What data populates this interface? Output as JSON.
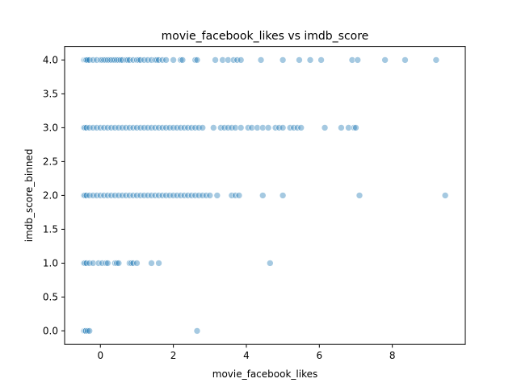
{
  "chart_data": {
    "type": "scatter",
    "title": "movie_facebook_likes vs imdb_score",
    "xlabel": "movie_facebook_likes",
    "ylabel": "imdb_score_binned",
    "xlim": [
      -0.98,
      10.0
    ],
    "ylim": [
      -0.2,
      4.2
    ],
    "xticks": [
      0,
      2,
      4,
      6,
      8
    ],
    "yticks": [
      0.0,
      0.5,
      1.0,
      1.5,
      2.0,
      2.5,
      3.0,
      3.5,
      4.0
    ],
    "ytick_labels": [
      "0.0",
      "0.5",
      "1.0",
      "1.5",
      "2.0",
      "2.5",
      "3.0",
      "3.5",
      "4.0"
    ],
    "grid": false,
    "marker_color": "#1f77b4",
    "marker_alpha": 0.4,
    "series": [
      {
        "x": [
          -0.45,
          -0.42,
          -0.4,
          -0.38,
          -0.35,
          -0.3,
          -0.2,
          -0.1,
          0.0,
          0.05,
          0.1,
          0.15,
          0.2,
          0.25,
          0.3,
          0.35,
          0.4,
          0.45,
          0.5,
          0.55,
          0.6,
          0.7,
          0.75,
          0.8,
          0.9,
          1.0,
          1.05,
          1.1,
          1.2,
          1.3,
          1.4,
          1.5,
          1.55,
          1.6,
          1.7,
          1.8,
          2.0,
          2.2,
          2.25,
          2.6,
          2.65,
          3.15,
          3.35,
          3.5,
          3.65,
          3.75,
          3.85,
          4.4,
          5.0,
          5.45,
          5.75,
          6.05,
          6.9,
          7.05,
          7.8,
          8.35,
          9.2
        ],
        "y": [
          4,
          4,
          4,
          4,
          4,
          4,
          4,
          4,
          4,
          4,
          4,
          4,
          4,
          4,
          4,
          4,
          4,
          4,
          4,
          4,
          4,
          4,
          4,
          4,
          4,
          4,
          4,
          4,
          4,
          4,
          4,
          4,
          4,
          4,
          4,
          4,
          4,
          4,
          4,
          4,
          4,
          4,
          4,
          4,
          4,
          4,
          4,
          4,
          4,
          4,
          4,
          4,
          4,
          4,
          4,
          4,
          4
        ]
      },
      {
        "x": [
          -0.45,
          -0.42,
          -0.38,
          -0.3,
          -0.2,
          -0.1,
          0.0,
          0.1,
          0.2,
          0.3,
          0.4,
          0.5,
          0.6,
          0.7,
          0.8,
          0.9,
          1.0,
          1.1,
          1.2,
          1.3,
          1.4,
          1.5,
          1.6,
          1.7,
          1.8,
          1.9,
          2.0,
          2.1,
          2.2,
          2.3,
          2.4,
          2.5,
          2.6,
          2.7,
          2.8,
          3.1,
          3.3,
          3.4,
          3.5,
          3.6,
          3.7,
          3.85,
          4.05,
          4.15,
          4.3,
          4.45,
          4.6,
          4.8,
          4.9,
          5.0,
          5.2,
          5.3,
          5.4,
          5.5,
          6.15,
          6.6,
          6.8,
          6.95,
          7.0
        ],
        "y": [
          3,
          3,
          3,
          3,
          3,
          3,
          3,
          3,
          3,
          3,
          3,
          3,
          3,
          3,
          3,
          3,
          3,
          3,
          3,
          3,
          3,
          3,
          3,
          3,
          3,
          3,
          3,
          3,
          3,
          3,
          3,
          3,
          3,
          3,
          3,
          3,
          3,
          3,
          3,
          3,
          3,
          3,
          3,
          3,
          3,
          3,
          3,
          3,
          3,
          3,
          3,
          3,
          3,
          3,
          3,
          3,
          3,
          3,
          3
        ]
      },
      {
        "x": [
          -0.45,
          -0.42,
          -0.38,
          -0.3,
          -0.2,
          -0.1,
          0.0,
          0.1,
          0.2,
          0.3,
          0.4,
          0.5,
          0.6,
          0.7,
          0.8,
          0.9,
          1.0,
          1.1,
          1.2,
          1.3,
          1.4,
          1.5,
          1.6,
          1.7,
          1.8,
          1.9,
          2.0,
          2.1,
          2.2,
          2.3,
          2.4,
          2.5,
          2.6,
          2.7,
          2.8,
          2.9,
          3.0,
          3.2,
          3.6,
          3.7,
          3.8,
          4.45,
          5.0,
          7.1,
          9.45
        ],
        "y": [
          2,
          2,
          2,
          2,
          2,
          2,
          2,
          2,
          2,
          2,
          2,
          2,
          2,
          2,
          2,
          2,
          2,
          2,
          2,
          2,
          2,
          2,
          2,
          2,
          2,
          2,
          2,
          2,
          2,
          2,
          2,
          2,
          2,
          2,
          2,
          2,
          2,
          2,
          2,
          2,
          2,
          2,
          2,
          2,
          2
        ]
      },
      {
        "x": [
          -0.45,
          -0.42,
          -0.38,
          -0.3,
          -0.2,
          -0.05,
          0.05,
          0.15,
          0.2,
          0.4,
          0.45,
          0.5,
          0.8,
          0.85,
          0.9,
          1.0,
          1.4,
          1.6,
          4.65
        ],
        "y": [
          1,
          1,
          1,
          1,
          1,
          1,
          1,
          1,
          1,
          1,
          1,
          1,
          1,
          1,
          1,
          1,
          1,
          1,
          1
        ]
      },
      {
        "x": [
          -0.45,
          -0.42,
          -0.4,
          -0.35,
          -0.3,
          2.65
        ],
        "y": [
          0,
          0,
          0,
          0,
          0,
          0
        ]
      }
    ]
  }
}
